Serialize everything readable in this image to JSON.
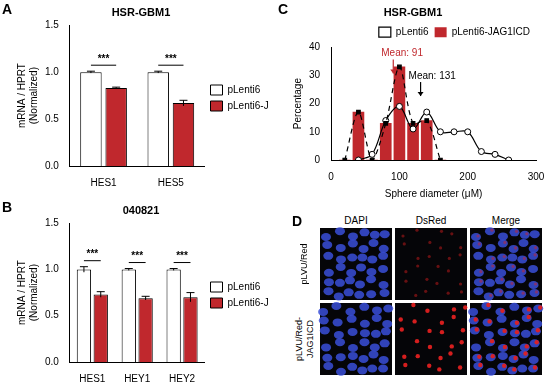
{
  "chart_data": [
    {
      "panel": "A",
      "type": "bar",
      "title": "HSR-GBM1",
      "y_label": [
        "mRNA / HPRT",
        "(Normalized)"
      ],
      "categories": [
        "HES1",
        "HES5"
      ],
      "ylim": [
        0,
        1.5
      ],
      "yticks": [
        {
          "value": 0,
          "label": "0.0"
        },
        0.5,
        {
          "value": 1,
          "label": "1.0"
        },
        1.5
      ],
      "grid": false,
      "legend": "right",
      "series": [
        {
          "name": "pLenti6",
          "color": "#ffffff",
          "values": [
            1.0,
            1.0
          ],
          "errors": [
            0.01,
            0.01
          ]
        },
        {
          "name": "pLenti6-JAG1ICD",
          "color": "#c0282d",
          "values": [
            0.83,
            0.67
          ],
          "errors": [
            0.01,
            0.03
          ]
        }
      ],
      "annotations": [
        {
          "text": "***",
          "category": "HES1"
        },
        {
          "text": "***",
          "category": "HES5"
        }
      ]
    },
    {
      "panel": "B",
      "type": "bar",
      "title": "040821",
      "y_label": [
        "mRNA / HPRT",
        "(Normalized)"
      ],
      "categories": [
        "HES1",
        "HEY1",
        "HEY2"
      ],
      "ylim": [
        0,
        1.5
      ],
      "yticks": [
        {
          "value": 0,
          "label": "0.0"
        },
        0.5,
        {
          "value": 1,
          "label": "1.0"
        },
        1.5
      ],
      "grid": false,
      "legend": "right",
      "series": [
        {
          "name": "pLenti6",
          "color": "#ffffff",
          "values": [
            1.0,
            1.0,
            1.0
          ],
          "errors": [
            0.03,
            0.01,
            0.01
          ]
        },
        {
          "name": "pLenti6-JAG1ICD",
          "color": "#c0282d",
          "values": [
            0.73,
            0.69,
            0.7
          ],
          "errors": [
            0.03,
            0.02,
            0.05
          ]
        }
      ],
      "annotations": [
        {
          "text": "***",
          "category": "HES1"
        },
        {
          "text": "***",
          "category": "HEY1"
        },
        {
          "text": "***",
          "category": "HEY2"
        }
      ]
    },
    {
      "panel": "C",
      "type": "line",
      "title": "HSR-GBM1",
      "x_label": "Sphere diameter (μM)",
      "y_label": "Percentage",
      "xlim": [
        0,
        300
      ],
      "xticks": [
        0,
        100,
        200,
        300
      ],
      "ylim": [
        0,
        40
      ],
      "yticks": [
        0,
        10,
        20,
        30,
        40
      ],
      "grid": false,
      "legend": "top",
      "series": [
        {
          "name": "pLenti6",
          "type": "line",
          "color": "#ffffff",
          "marker": "circle",
          "line_style": "solid",
          "x": [
            40,
            60,
            80,
            100,
            120,
            140,
            160,
            180,
            200,
            220,
            240,
            260
          ],
          "values": [
            0,
            2,
            14,
            19,
            11,
            17,
            10,
            10,
            10,
            3,
            2,
            0
          ]
        },
        {
          "name": "pLenti6-JAG1ICD",
          "type": "bar",
          "color": "#c0282d",
          "marker": "square",
          "line_style": "dashed",
          "x": [
            20,
            40,
            60,
            80,
            100,
            120,
            140,
            160
          ],
          "values": [
            0,
            17,
            0,
            13,
            33,
            13,
            14,
            0
          ]
        }
      ],
      "annotations": [
        {
          "text": "Mean: 91",
          "x": 91,
          "y": 36,
          "color": "#c0282d"
        },
        {
          "text": "Mean: 131",
          "x": 131,
          "y": 28,
          "color": "#000000"
        }
      ]
    }
  ],
  "image_panel": {
    "panel": "D",
    "columns": [
      "DAPI",
      "DsRed",
      "Merge"
    ],
    "rows": [
      "pLVU/Red",
      "pLVU/Red-JAG1ICD"
    ]
  }
}
